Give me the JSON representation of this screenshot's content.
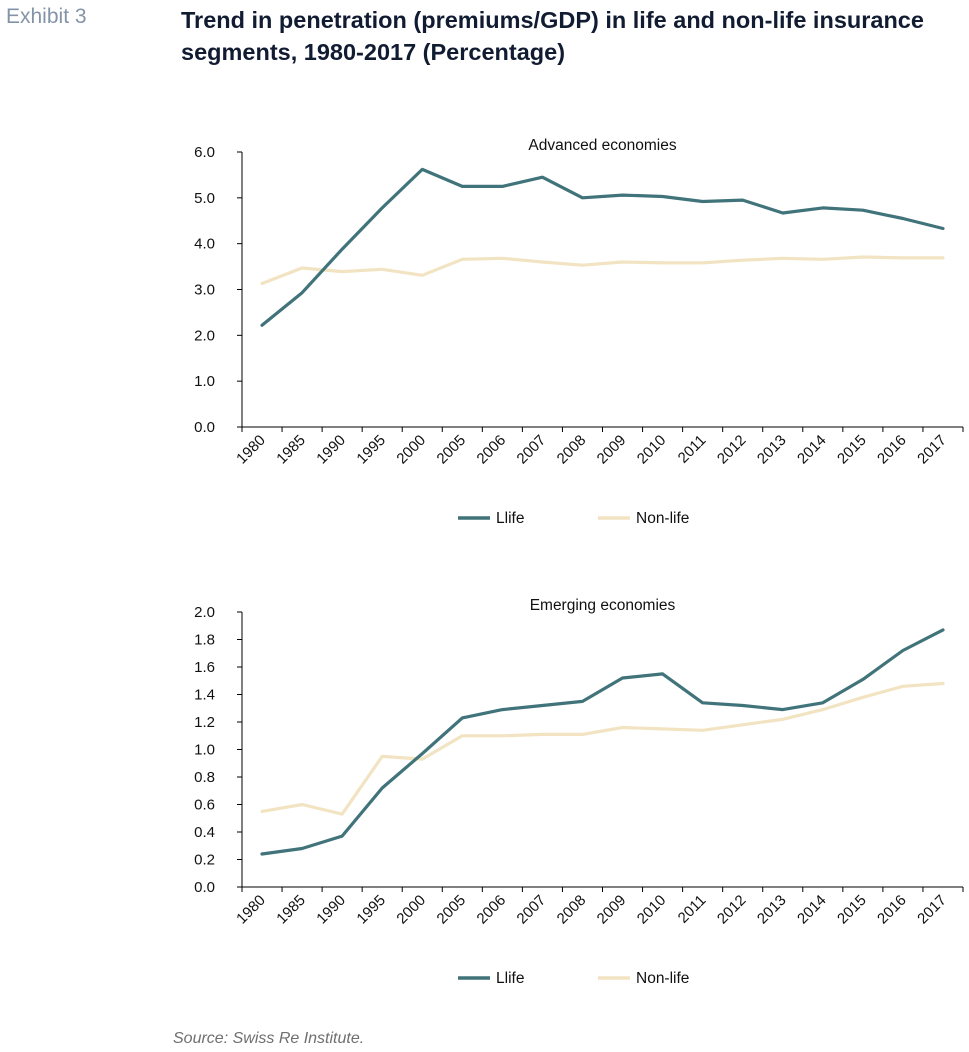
{
  "exhibit_label": "Exhibit 3",
  "title": "Trend in penetration (premiums/GDP) in life and non-life insurance segments, 1980-2017 (Percentage)",
  "source": "Source: Swiss Re Institute.",
  "colors": {
    "life": "#40737a",
    "nonlife": "#f2e4c2",
    "axis": "#000000",
    "title": "#111c33",
    "exhibit": "#8494a8"
  },
  "chart_data": [
    {
      "type": "line",
      "title": "Advanced economies",
      "categories": [
        "1980",
        "1985",
        "1990",
        "1995",
        "2000",
        "2005",
        "2006",
        "2007",
        "2008",
        "2009",
        "2010",
        "2011",
        "2012",
        "2013",
        "2014",
        "2015",
        "2016",
        "2017"
      ],
      "yticks": [
        "0.0",
        "1.0",
        "2.0",
        "3.0",
        "4.0",
        "5.0",
        "6.0"
      ],
      "ylim": [
        0,
        6
      ],
      "series": [
        {
          "name": "Llife",
          "values": [
            2.22,
            2.93,
            3.88,
            4.78,
            5.62,
            5.25,
            5.25,
            5.45,
            5.0,
            5.06,
            5.03,
            4.92,
            4.95,
            4.67,
            4.78,
            4.73,
            4.55,
            4.33
          ]
        },
        {
          "name": "Non-life",
          "values": [
            3.13,
            3.47,
            3.39,
            3.44,
            3.31,
            3.66,
            3.68,
            3.6,
            3.53,
            3.6,
            3.58,
            3.58,
            3.64,
            3.68,
            3.66,
            3.71,
            3.69,
            3.69
          ]
        }
      ],
      "legend": "bottom"
    },
    {
      "type": "line",
      "title": "Emerging economies",
      "categories": [
        "1980",
        "1985",
        "1990",
        "1995",
        "2000",
        "2005",
        "2006",
        "2007",
        "2008",
        "2009",
        "2010",
        "2011",
        "2012",
        "2013",
        "2014",
        "2015",
        "2016",
        "2017"
      ],
      "yticks": [
        "0.0",
        "0.2",
        "0.4",
        "0.6",
        "0.8",
        "1.0",
        "1.2",
        "1.4",
        "1.6",
        "1.8",
        "2.0"
      ],
      "ylim": [
        0,
        2
      ],
      "series": [
        {
          "name": "Llife",
          "values": [
            0.24,
            0.28,
            0.37,
            0.72,
            0.97,
            1.23,
            1.29,
            1.32,
            1.35,
            1.52,
            1.55,
            1.34,
            1.32,
            1.29,
            1.34,
            1.51,
            1.72,
            1.87
          ]
        },
        {
          "name": "Non-life",
          "values": [
            0.55,
            0.6,
            0.53,
            0.95,
            0.93,
            1.1,
            1.1,
            1.11,
            1.11,
            1.16,
            1.15,
            1.14,
            1.18,
            1.22,
            1.29,
            1.38,
            1.46,
            1.48
          ]
        }
      ],
      "legend": "bottom"
    }
  ]
}
